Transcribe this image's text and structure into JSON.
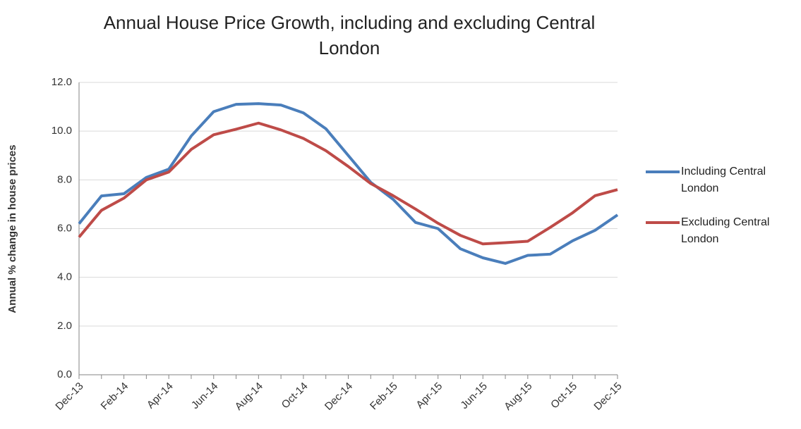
{
  "chart_data": {
    "type": "line",
    "title": "Annual House Price Growth, including and excluding Central London",
    "y_label": "Annual % change in house prices",
    "categories": [
      "Dec-13",
      null,
      "Feb-14",
      null,
      "Apr-14",
      null,
      "Jun-14",
      null,
      "Aug-14",
      null,
      "Oct-14",
      null,
      "Dec-14",
      null,
      "Feb-15",
      null,
      "Apr-15",
      null,
      "Jun-15",
      null,
      "Aug-15",
      null,
      "Oct-15",
      null,
      "Dec-15"
    ],
    "series": [
      {
        "name": "Including Central London",
        "color": "#4a7ebb",
        "values": [
          6.2,
          7.34,
          7.43,
          8.1,
          8.44,
          9.8,
          10.8,
          11.1,
          11.13,
          11.07,
          10.75,
          10.1,
          9.0,
          7.9,
          7.2,
          6.25,
          6.0,
          5.17,
          4.8,
          4.57,
          4.9,
          4.95,
          5.5,
          5.93,
          6.56
        ]
      },
      {
        "name": "Excluding Central London",
        "color": "#be4b48",
        "values": [
          5.65,
          6.75,
          7.25,
          8.0,
          8.32,
          9.25,
          9.85,
          10.08,
          10.33,
          10.05,
          9.7,
          9.2,
          8.55,
          7.85,
          7.35,
          6.8,
          6.22,
          5.72,
          5.37,
          5.42,
          5.48,
          6.05,
          6.65,
          7.35,
          7.6
        ]
      }
    ],
    "ylim": [
      0,
      12
    ],
    "yticks": [
      {
        "value": 0,
        "label": "0.0"
      },
      {
        "value": 2,
        "label": "2.0"
      },
      {
        "value": 4,
        "label": "4.0"
      },
      {
        "value": 6,
        "label": "6.0"
      },
      {
        "value": 8,
        "label": "8.0"
      },
      {
        "value": 10,
        "label": "10.0"
      },
      {
        "value": 12,
        "label": "12.0"
      }
    ],
    "grid": true,
    "legend": "right"
  }
}
